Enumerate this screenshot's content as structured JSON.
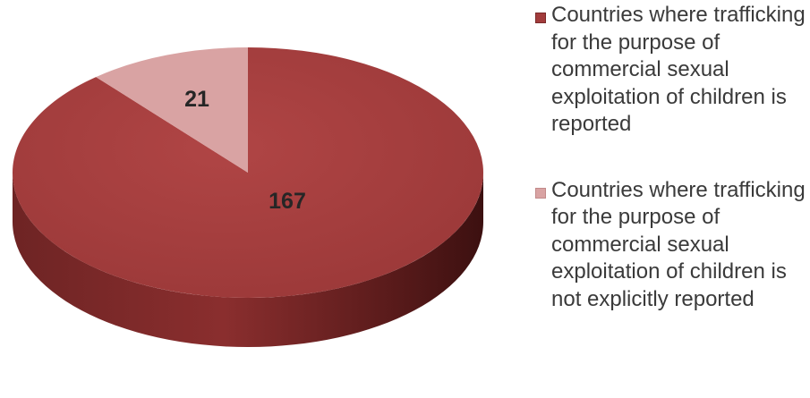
{
  "chart_data": {
    "type": "pie",
    "title": "",
    "categories": [
      "Countries where trafficking for the purpose of commercial sexual exploitation of children is reported",
      "Countries where trafficking for the purpose of commercial sexual exploitation of children is not explicitly reported"
    ],
    "values": [
      167,
      21
    ],
    "data_labels": [
      "167",
      "21"
    ],
    "colors": [
      "#a23c3c",
      "#d9a3a3"
    ],
    "legend_position": "right",
    "style": "3d"
  }
}
